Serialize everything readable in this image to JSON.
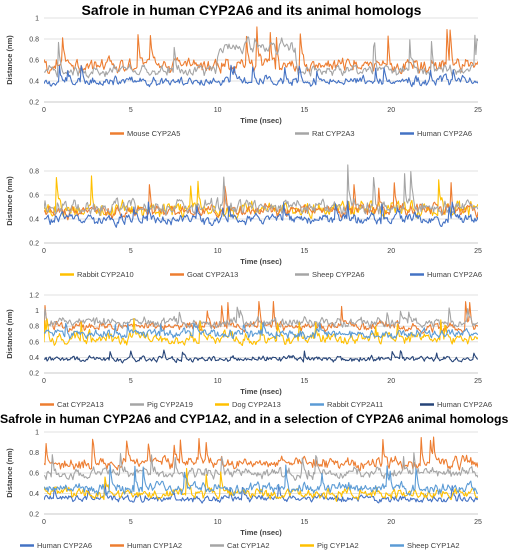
{
  "sections": [
    {
      "title": "Safrole in human CYP2A6 and its animal homologs"
    },
    {
      "title": "Safrole in human CYP2A6 and CYP1A2, and in a selection of CYP2A6 animal homologs"
    }
  ],
  "chart_data": [
    {
      "type": "line",
      "xlabel": "Time (nsec)",
      "ylabel": "Distance (nm)",
      "xlim": [
        0,
        25
      ],
      "ylim": [
        0.2,
        1.0
      ],
      "xticks": [
        "0",
        "5",
        "10",
        "15",
        "20",
        "25"
      ],
      "yticks": [
        "0.2",
        "0.4",
        "0.6",
        "0.8",
        "1"
      ],
      "legend_position": "bottom",
      "series": [
        {
          "name": "Mouse CYP2A5",
          "color": "#ED7D31",
          "mean": 0.55,
          "noise": 0.09,
          "spike": 0.92
        },
        {
          "name": "Rat CYP2A3",
          "color": "#A5A5A5",
          "mean": 0.5,
          "noise": 0.07,
          "spike": 0.85,
          "segments": [
            {
              "from": 10,
              "to": 14.5,
              "mean": 0.72
            }
          ]
        },
        {
          "name": "Human CYP2A6",
          "color": "#4472C4",
          "mean": 0.4,
          "noise": 0.06,
          "spike": 0.55
        }
      ]
    },
    {
      "type": "line",
      "xlabel": "Time (nsec)",
      "ylabel": "Distance (nm)",
      "xlim": [
        0,
        25
      ],
      "ylim": [
        0.2,
        0.9
      ],
      "xticks": [
        "0",
        "5",
        "10",
        "15",
        "20",
        "25"
      ],
      "yticks": [
        "0.2",
        "0.4",
        "0.6",
        "0.8"
      ],
      "legend_position": "bottom",
      "series": [
        {
          "name": "Rabbit CYP2A10",
          "color": "#FFC000",
          "mean": 0.48,
          "noise": 0.08,
          "spike": 0.78
        },
        {
          "name": "Goat CYP2A13",
          "color": "#ED7D31",
          "mean": 0.47,
          "noise": 0.07,
          "spike": 0.72
        },
        {
          "name": "Sheep CYP2A6",
          "color": "#A5A5A5",
          "mean": 0.5,
          "noise": 0.08,
          "spike": 0.86
        },
        {
          "name": "Human CYP2A6",
          "color": "#4472C4",
          "mean": 0.4,
          "noise": 0.06,
          "spike": 0.55
        }
      ]
    },
    {
      "type": "line",
      "xlabel": "Time (nsec)",
      "ylabel": "Distance (nm)",
      "xlim": [
        0,
        25
      ],
      "ylim": [
        0.2,
        1.2
      ],
      "xticks": [
        "0",
        "5",
        "10",
        "15",
        "20",
        "25"
      ],
      "yticks": [
        "0.2",
        "0.4",
        "0.6",
        "0.8",
        "1",
        "1.2"
      ],
      "legend_position": "bottom",
      "series": [
        {
          "name": "Cat CYP2A13",
          "color": "#ED7D31",
          "mean": 0.8,
          "noise": 0.08,
          "spike": 1.12
        },
        {
          "name": "Pig CYP2A19",
          "color": "#A5A5A5",
          "mean": 0.85,
          "noise": 0.08,
          "spike": 1.05
        },
        {
          "name": "Dog CYP2A13",
          "color": "#FFC000",
          "mean": 0.65,
          "noise": 0.1,
          "spike": 0.9
        },
        {
          "name": "Rabbit CYP2A11",
          "color": "#5B9BD5",
          "mean": 0.7,
          "noise": 0.08,
          "spike": 0.88
        },
        {
          "name": "Human CYP2A6",
          "color": "#264478",
          "mean": 0.38,
          "noise": 0.05,
          "spike": 0.5
        }
      ]
    },
    {
      "type": "line",
      "xlabel": "Time (nsec)",
      "ylabel": "Distance (nm)",
      "xlim": [
        0,
        25
      ],
      "ylim": [
        0.2,
        1.0
      ],
      "xticks": [
        "0",
        "5",
        "10",
        "15",
        "20",
        "25"
      ],
      "yticks": [
        "0.2",
        "0.4",
        "0.6",
        "0.8",
        "1"
      ],
      "legend_position": "bottom",
      "series": [
        {
          "name": "Human CYP2A6",
          "color": "#4472C4",
          "mean": 0.35,
          "noise": 0.05,
          "spike": 0.5
        },
        {
          "name": "Human CYP1A2",
          "color": "#ED7D31",
          "mean": 0.7,
          "noise": 0.08,
          "spike": 0.95
        },
        {
          "name": "Cat CYP1A2",
          "color": "#A5A5A5",
          "mean": 0.6,
          "noise": 0.07,
          "spike": 0.82
        },
        {
          "name": "Pig CYP1A2",
          "color": "#FFC000",
          "mean": 0.4,
          "noise": 0.07,
          "spike": 0.65
        },
        {
          "name": "Sheep CYP1A2",
          "color": "#5B9BD5",
          "mean": 0.45,
          "noise": 0.07,
          "spike": 0.68
        }
      ]
    }
  ]
}
